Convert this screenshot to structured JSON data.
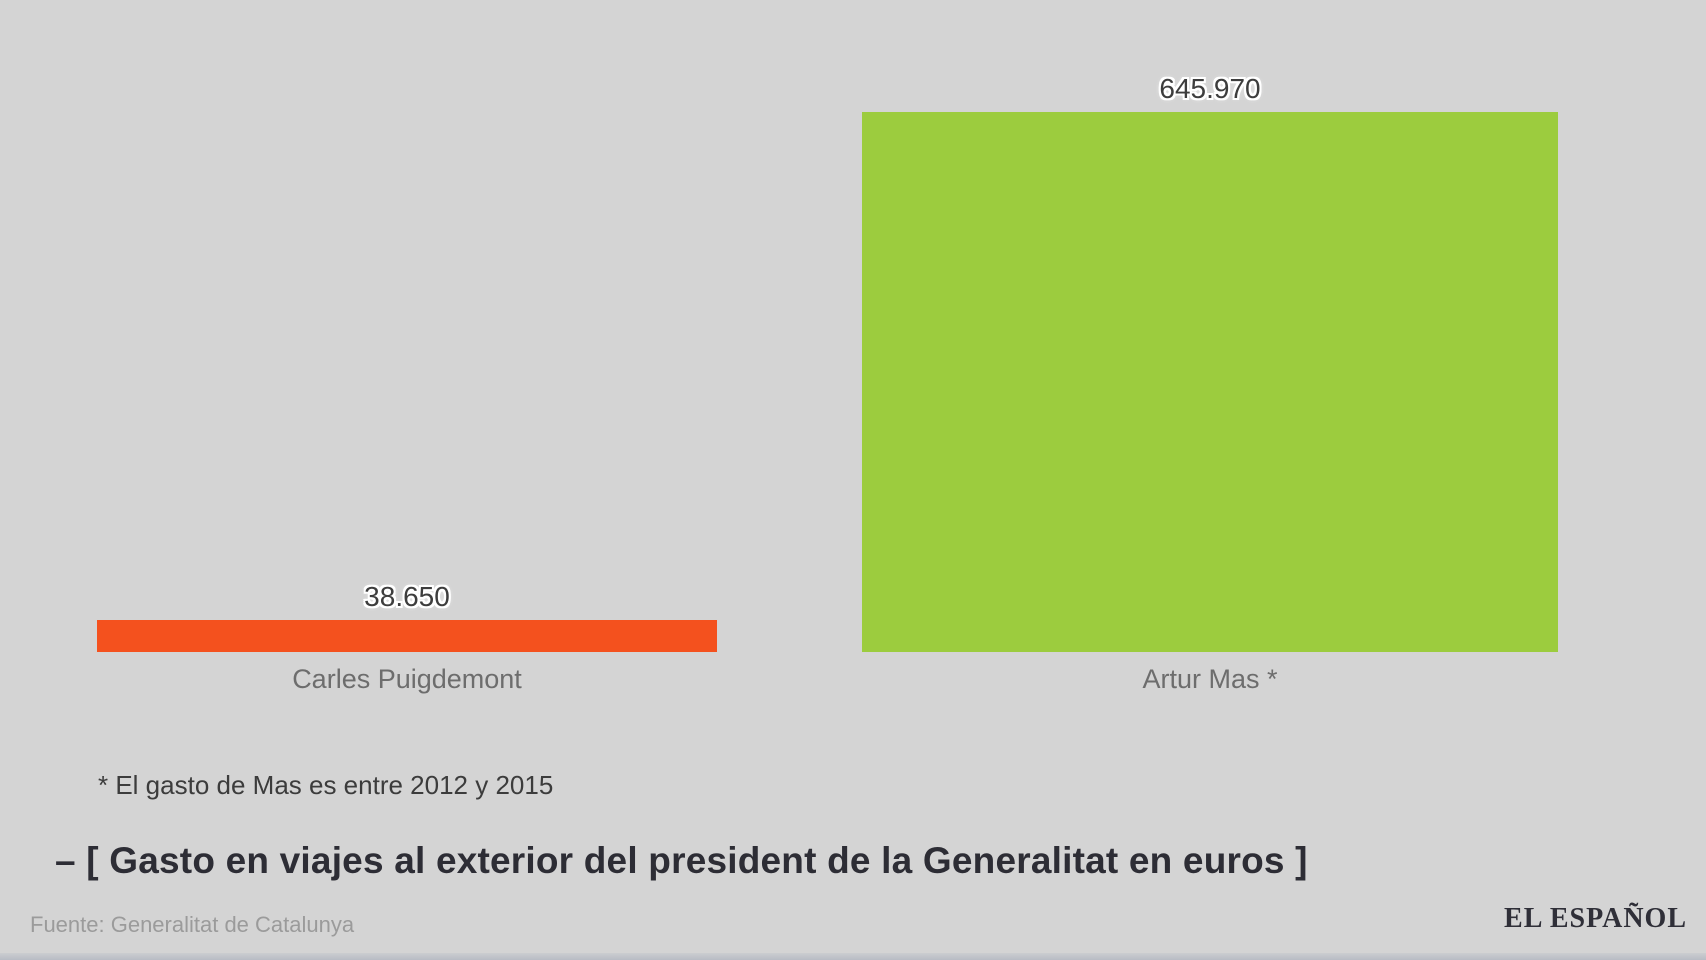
{
  "chart_data": {
    "type": "bar",
    "orientation": "vertical-columns",
    "categories": [
      "Carles Puigdemont",
      "Artur Mas *"
    ],
    "values": [
      38650,
      645970
    ],
    "value_labels": [
      "38.650",
      "645.970"
    ],
    "bar_colors": [
      "#f4511e",
      "#9ccc3e"
    ],
    "ymax": 645970,
    "grid": false,
    "legend": false,
    "axes_visible": false,
    "footnote": "* El gasto de Mas es entre 2012 y 2015",
    "title": "– [ Gasto en viajes al exterior del president de la Generalitat en euros ]",
    "source": "Fuente: Generalitat de Catalunya",
    "brand": "EL ESPAÑOL"
  },
  "colors": {
    "background": "#d4d4d4",
    "value_label": "#3d3d3d",
    "category_label": "#6d6d6d",
    "title": "#2d2d35",
    "source": "#9b9b9b",
    "brand": "#2f2f38"
  }
}
